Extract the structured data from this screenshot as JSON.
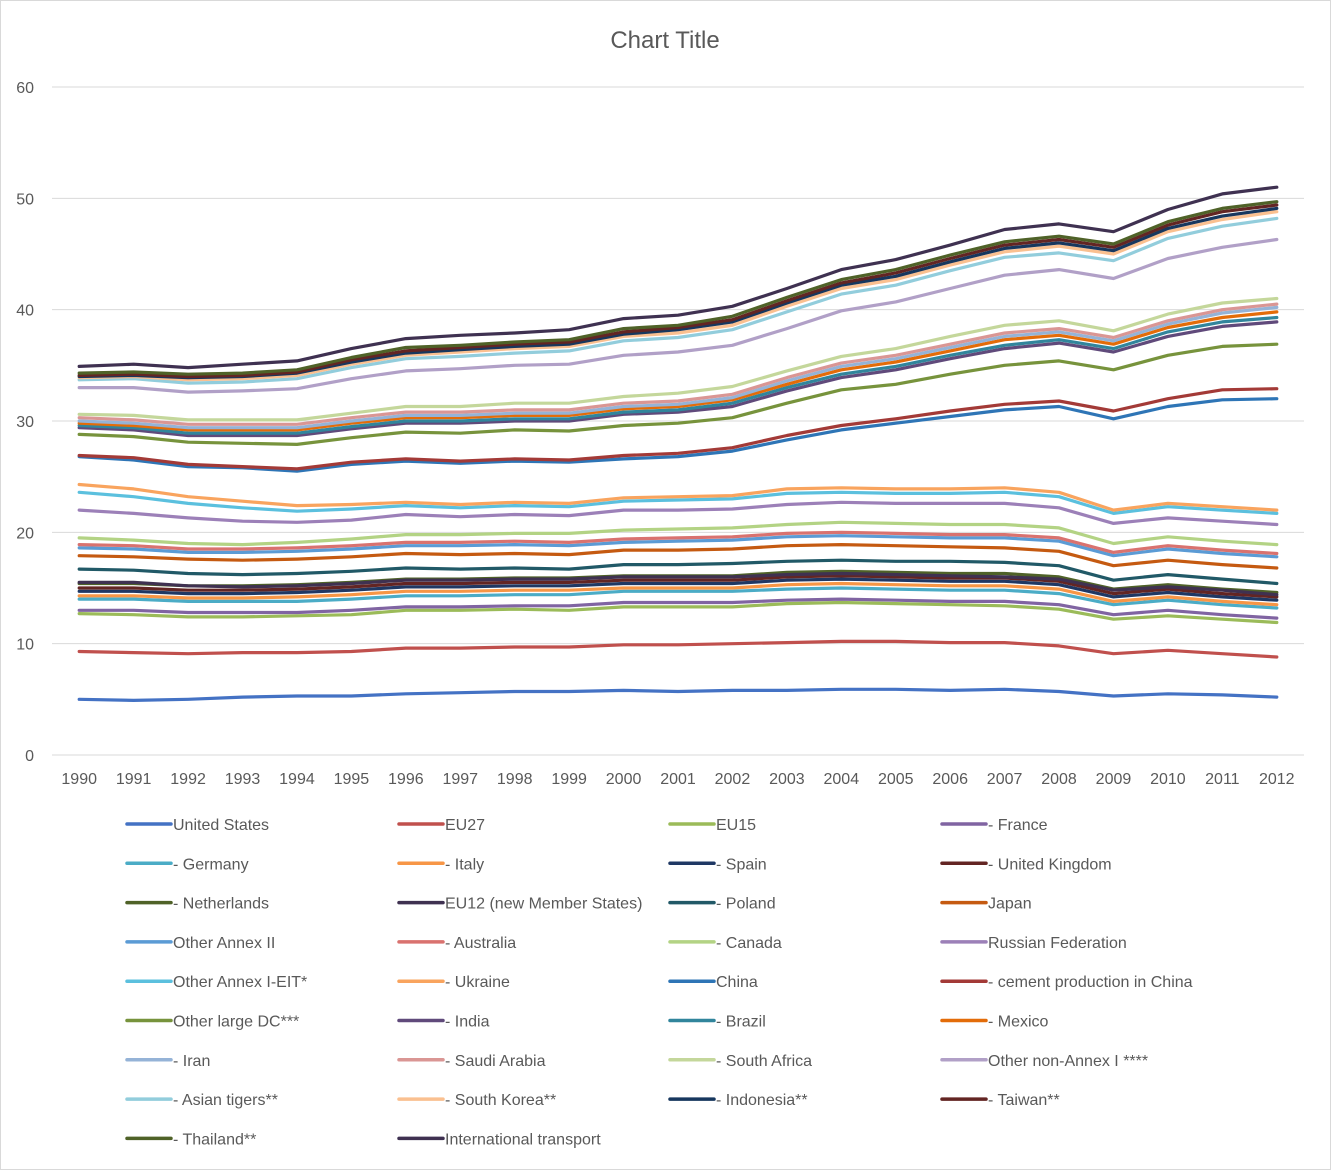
{
  "chart_data": {
    "type": "line",
    "title": "Chart Title",
    "xlabel": "",
    "ylabel": "",
    "ylim": [
      0,
      60
    ],
    "yticks": [
      "0",
      "10",
      "20",
      "30",
      "40",
      "50",
      "60"
    ],
    "grid": true,
    "legend_position": "bottom",
    "x": [
      "1990",
      "1991",
      "1992",
      "1993",
      "1994",
      "1995",
      "1996",
      "1997",
      "1998",
      "1999",
      "2000",
      "2001",
      "2002",
      "2003",
      "2004",
      "2005",
      "2006",
      "2007",
      "2008",
      "2009",
      "2010",
      "2011",
      "2012"
    ],
    "series": [
      {
        "name": "United States",
        "color": "#4472C4",
        "values": [
          5.0,
          4.9,
          5.0,
          5.2,
          5.3,
          5.3,
          5.5,
          5.6,
          5.7,
          5.7,
          5.8,
          5.7,
          5.8,
          5.8,
          5.9,
          5.9,
          5.8,
          5.9,
          5.7,
          5.3,
          5.5,
          5.4,
          5.2
        ]
      },
      {
        "name": "EU27",
        "color": "#C0504D",
        "values": [
          9.3,
          9.2,
          9.1,
          9.2,
          9.2,
          9.3,
          9.6,
          9.6,
          9.7,
          9.7,
          9.9,
          9.9,
          10.0,
          10.1,
          10.2,
          10.2,
          10.1,
          10.1,
          9.8,
          9.1,
          9.4,
          9.1,
          8.8
        ]
      },
      {
        "name": "EU15",
        "color": "#9BBB59",
        "values": [
          12.7,
          12.6,
          12.4,
          12.4,
          12.5,
          12.6,
          13.0,
          13.0,
          13.1,
          13.0,
          13.3,
          13.3,
          13.3,
          13.6,
          13.7,
          13.6,
          13.5,
          13.4,
          13.1,
          12.2,
          12.5,
          12.2,
          11.9
        ]
      },
      {
        "name": "- France",
        "color": "#8064A2",
        "values": [
          13.0,
          13.0,
          12.8,
          12.8,
          12.8,
          13.0,
          13.3,
          13.3,
          13.4,
          13.4,
          13.7,
          13.7,
          13.7,
          13.9,
          14.0,
          13.9,
          13.8,
          13.8,
          13.5,
          12.6,
          13.0,
          12.6,
          12.3
        ]
      },
      {
        "name": "- Germany",
        "color": "#4BACC6",
        "values": [
          14.0,
          14.0,
          13.8,
          13.8,
          13.8,
          14.0,
          14.3,
          14.3,
          14.4,
          14.4,
          14.7,
          14.7,
          14.7,
          14.9,
          15.0,
          14.9,
          14.8,
          14.8,
          14.5,
          13.5,
          13.9,
          13.5,
          13.2
        ]
      },
      {
        "name": "- Italy",
        "color": "#F79646",
        "values": [
          14.3,
          14.3,
          14.1,
          14.1,
          14.2,
          14.4,
          14.7,
          14.7,
          14.8,
          14.8,
          15.0,
          15.0,
          15.0,
          15.3,
          15.4,
          15.3,
          15.2,
          15.2,
          14.9,
          13.8,
          14.2,
          13.8,
          13.5
        ]
      },
      {
        "name": "- Spain",
        "color": "#1F3864",
        "values": [
          14.7,
          14.7,
          14.5,
          14.5,
          14.6,
          14.8,
          15.1,
          15.1,
          15.2,
          15.2,
          15.4,
          15.4,
          15.4,
          15.7,
          15.8,
          15.7,
          15.6,
          15.6,
          15.3,
          14.2,
          14.6,
          14.2,
          13.9
        ]
      },
      {
        "name": "- United Kingdom",
        "color": "#632523",
        "values": [
          15.0,
          15.0,
          14.8,
          14.8,
          14.9,
          15.1,
          15.4,
          15.4,
          15.5,
          15.5,
          15.7,
          15.7,
          15.7,
          16.0,
          16.1,
          16.0,
          15.9,
          15.9,
          15.6,
          14.5,
          14.9,
          14.5,
          14.2
        ]
      },
      {
        "name": "- Netherlands",
        "color": "#4F6228",
        "values": [
          15.4,
          15.4,
          15.2,
          15.2,
          15.3,
          15.5,
          15.8,
          15.8,
          15.9,
          15.9,
          16.1,
          16.1,
          16.1,
          16.4,
          16.5,
          16.4,
          16.3,
          16.3,
          16.0,
          14.9,
          15.3,
          14.9,
          14.6
        ]
      },
      {
        "name": "EU12 (new Member States)",
        "color": "#3F3151",
        "values": [
          15.5,
          15.5,
          15.2,
          15.1,
          15.2,
          15.4,
          15.7,
          15.7,
          15.8,
          15.8,
          16.0,
          16.0,
          16.0,
          16.2,
          16.3,
          16.2,
          16.1,
          16.0,
          15.8,
          14.8,
          15.1,
          14.8,
          14.4
        ]
      },
      {
        "name": "- Poland",
        "color": "#215967",
        "values": [
          16.7,
          16.6,
          16.3,
          16.2,
          16.3,
          16.5,
          16.8,
          16.7,
          16.8,
          16.7,
          17.1,
          17.1,
          17.2,
          17.4,
          17.5,
          17.4,
          17.4,
          17.3,
          17.0,
          15.7,
          16.2,
          15.8,
          15.4
        ]
      },
      {
        "name": "Japan",
        "color": "#C55A11",
        "values": [
          17.9,
          17.8,
          17.6,
          17.5,
          17.6,
          17.8,
          18.1,
          18.0,
          18.1,
          18.0,
          18.4,
          18.4,
          18.5,
          18.8,
          18.9,
          18.8,
          18.7,
          18.6,
          18.3,
          17.0,
          17.5,
          17.1,
          16.8
        ]
      },
      {
        "name": "Other Annex II",
        "color": "#5B9BD5",
        "values": [
          18.6,
          18.5,
          18.2,
          18.2,
          18.3,
          18.5,
          18.8,
          18.8,
          18.9,
          18.8,
          19.1,
          19.2,
          19.3,
          19.6,
          19.7,
          19.6,
          19.5,
          19.5,
          19.2,
          17.9,
          18.5,
          18.1,
          17.8
        ]
      },
      {
        "name": "- Australia",
        "color": "#D9726F",
        "values": [
          18.9,
          18.8,
          18.5,
          18.5,
          18.6,
          18.8,
          19.1,
          19.1,
          19.2,
          19.1,
          19.4,
          19.5,
          19.6,
          19.9,
          20.0,
          19.9,
          19.8,
          19.8,
          19.5,
          18.2,
          18.8,
          18.4,
          18.1
        ]
      },
      {
        "name": "- Canada",
        "color": "#B3D384",
        "values": [
          19.5,
          19.3,
          19.0,
          18.9,
          19.1,
          19.4,
          19.8,
          19.8,
          19.9,
          19.9,
          20.2,
          20.3,
          20.4,
          20.7,
          20.9,
          20.8,
          20.7,
          20.7,
          20.4,
          19.0,
          19.6,
          19.2,
          18.9
        ]
      },
      {
        "name": "Russian Federation",
        "color": "#9C80B8",
        "values": [
          22.0,
          21.7,
          21.3,
          21.0,
          20.9,
          21.1,
          21.6,
          21.4,
          21.6,
          21.5,
          22.0,
          22.0,
          22.1,
          22.5,
          22.7,
          22.6,
          22.6,
          22.6,
          22.2,
          20.8,
          21.3,
          21.0,
          20.7
        ]
      },
      {
        "name": "Other Annex I-EIT*",
        "color": "#5BC0DE",
        "values": [
          23.6,
          23.2,
          22.6,
          22.2,
          21.9,
          22.1,
          22.4,
          22.2,
          22.4,
          22.3,
          22.8,
          22.9,
          23.0,
          23.5,
          23.6,
          23.5,
          23.5,
          23.6,
          23.2,
          21.7,
          22.3,
          22.0,
          21.7
        ]
      },
      {
        "name": "- Ukraine",
        "color": "#F9A45E",
        "values": [
          24.3,
          23.9,
          23.2,
          22.8,
          22.4,
          22.5,
          22.7,
          22.5,
          22.7,
          22.6,
          23.1,
          23.2,
          23.3,
          23.9,
          24.0,
          23.9,
          23.9,
          24.0,
          23.6,
          22.0,
          22.6,
          22.3,
          22.0
        ]
      },
      {
        "name": "China",
        "color": "#2E75B6",
        "values": [
          26.8,
          26.5,
          25.9,
          25.8,
          25.5,
          26.1,
          26.4,
          26.2,
          26.4,
          26.3,
          26.6,
          26.8,
          27.3,
          28.3,
          29.2,
          29.8,
          30.4,
          31.0,
          31.3,
          30.2,
          31.3,
          31.9,
          32.0
        ]
      },
      {
        "name": "- cement production in China",
        "color": "#A33A37",
        "values": [
          26.9,
          26.7,
          26.1,
          25.9,
          25.7,
          26.3,
          26.6,
          26.4,
          26.6,
          26.5,
          26.9,
          27.1,
          27.6,
          28.7,
          29.6,
          30.2,
          30.9,
          31.5,
          31.8,
          30.9,
          32.0,
          32.8,
          32.9
        ]
      },
      {
        "name": "Other large DC***",
        "color": "#77933C",
        "values": [
          28.8,
          28.6,
          28.1,
          28.0,
          27.9,
          28.5,
          29.0,
          28.9,
          29.2,
          29.1,
          29.6,
          29.8,
          30.3,
          31.6,
          32.8,
          33.3,
          34.2,
          35.0,
          35.4,
          34.6,
          35.9,
          36.7,
          36.9
        ]
      },
      {
        "name": "- India",
        "color": "#604A7B",
        "values": [
          29.4,
          29.2,
          28.7,
          28.7,
          28.7,
          29.3,
          29.8,
          29.8,
          30.0,
          30.0,
          30.6,
          30.8,
          31.3,
          32.7,
          33.9,
          34.6,
          35.6,
          36.5,
          37.0,
          36.2,
          37.6,
          38.5,
          38.9
        ]
      },
      {
        "name": "- Brazil",
        "color": "#31859C",
        "values": [
          29.6,
          29.4,
          28.9,
          28.9,
          28.9,
          29.5,
          30.0,
          30.0,
          30.2,
          30.2,
          30.8,
          31.0,
          31.6,
          33.0,
          34.2,
          34.9,
          35.9,
          36.8,
          37.3,
          36.5,
          38.0,
          38.9,
          39.3
        ]
      },
      {
        "name": "- Mexico",
        "color": "#E36C09",
        "values": [
          29.8,
          29.6,
          29.2,
          29.2,
          29.2,
          29.8,
          30.3,
          30.3,
          30.5,
          30.5,
          31.1,
          31.3,
          31.9,
          33.3,
          34.6,
          35.3,
          36.3,
          37.3,
          37.7,
          36.9,
          38.4,
          39.3,
          39.8
        ]
      },
      {
        "name": "- Iran",
        "color": "#95B3D7",
        "values": [
          30.0,
          29.8,
          29.4,
          29.4,
          29.4,
          30.0,
          30.5,
          30.5,
          30.7,
          30.7,
          31.3,
          31.5,
          32.1,
          33.6,
          34.9,
          35.6,
          36.6,
          37.6,
          38.0,
          37.2,
          38.7,
          39.7,
          40.2
        ]
      },
      {
        "name": "- Saudi Arabia",
        "color": "#DA9694",
        "values": [
          30.3,
          30.1,
          29.7,
          29.7,
          29.7,
          30.3,
          30.8,
          30.8,
          31.0,
          31.0,
          31.6,
          31.8,
          32.4,
          33.9,
          35.2,
          35.9,
          36.9,
          37.9,
          38.3,
          37.5,
          39.0,
          40.0,
          40.5
        ]
      },
      {
        "name": "- South Africa",
        "color": "#C4D79B",
        "values": [
          30.6,
          30.5,
          30.1,
          30.1,
          30.1,
          30.7,
          31.3,
          31.3,
          31.6,
          31.6,
          32.2,
          32.5,
          33.1,
          34.5,
          35.8,
          36.5,
          37.6,
          38.6,
          39.0,
          38.1,
          39.6,
          40.6,
          41.0
        ]
      },
      {
        "name": "Other non-Annex I ****",
        "color": "#B1A0C7",
        "values": [
          33.0,
          33.0,
          32.6,
          32.7,
          32.9,
          33.8,
          34.5,
          34.7,
          35.0,
          35.1,
          35.9,
          36.2,
          36.8,
          38.3,
          39.9,
          40.7,
          41.9,
          43.1,
          43.6,
          42.8,
          44.6,
          45.6,
          46.3
        ]
      },
      {
        "name": "- Asian tigers**",
        "color": "#92CDDC",
        "values": [
          33.7,
          33.8,
          33.4,
          33.5,
          33.8,
          34.8,
          35.6,
          35.8,
          36.1,
          36.3,
          37.2,
          37.5,
          38.2,
          39.8,
          41.4,
          42.2,
          43.5,
          44.7,
          45.1,
          44.4,
          46.4,
          47.5,
          48.2
        ]
      },
      {
        "name": "- South Korea**",
        "color": "#FAC090",
        "values": [
          33.9,
          34.0,
          33.7,
          33.8,
          34.1,
          35.1,
          35.9,
          36.2,
          36.5,
          36.7,
          37.6,
          37.9,
          38.6,
          40.3,
          41.9,
          42.7,
          44.0,
          45.2,
          45.7,
          45.0,
          47.0,
          48.1,
          48.8
        ]
      },
      {
        "name": "- Indonesia**",
        "color": "#17375E",
        "values": [
          34.0,
          34.1,
          33.9,
          34.0,
          34.3,
          35.3,
          36.1,
          36.4,
          36.7,
          36.9,
          37.8,
          38.2,
          38.9,
          40.6,
          42.2,
          43.0,
          44.3,
          45.5,
          46.0,
          45.3,
          47.3,
          48.4,
          49.1
        ]
      },
      {
        "name": "- Taiwan**",
        "color": "#632523",
        "values": [
          34.1,
          34.2,
          34.0,
          34.1,
          34.4,
          35.5,
          36.3,
          36.6,
          36.9,
          37.1,
          38.0,
          38.4,
          39.1,
          40.8,
          42.4,
          43.3,
          44.6,
          45.8,
          46.3,
          45.6,
          47.6,
          48.8,
          49.4
        ]
      },
      {
        "name": "- Thailand**",
        "color": "#4F6228",
        "values": [
          34.3,
          34.4,
          34.2,
          34.3,
          34.6,
          35.7,
          36.6,
          36.8,
          37.1,
          37.3,
          38.3,
          38.6,
          39.4,
          41.1,
          42.7,
          43.6,
          44.9,
          46.1,
          46.6,
          45.9,
          47.9,
          49.1,
          49.7
        ]
      },
      {
        "name": "International transport",
        "color": "#3F3151",
        "values": [
          34.9,
          35.1,
          34.8,
          35.1,
          35.4,
          36.5,
          37.4,
          37.7,
          37.9,
          38.2,
          39.2,
          39.5,
          40.3,
          41.9,
          43.6,
          44.5,
          45.8,
          47.2,
          47.7,
          47.0,
          49.0,
          50.4,
          51.0
        ]
      }
    ]
  }
}
